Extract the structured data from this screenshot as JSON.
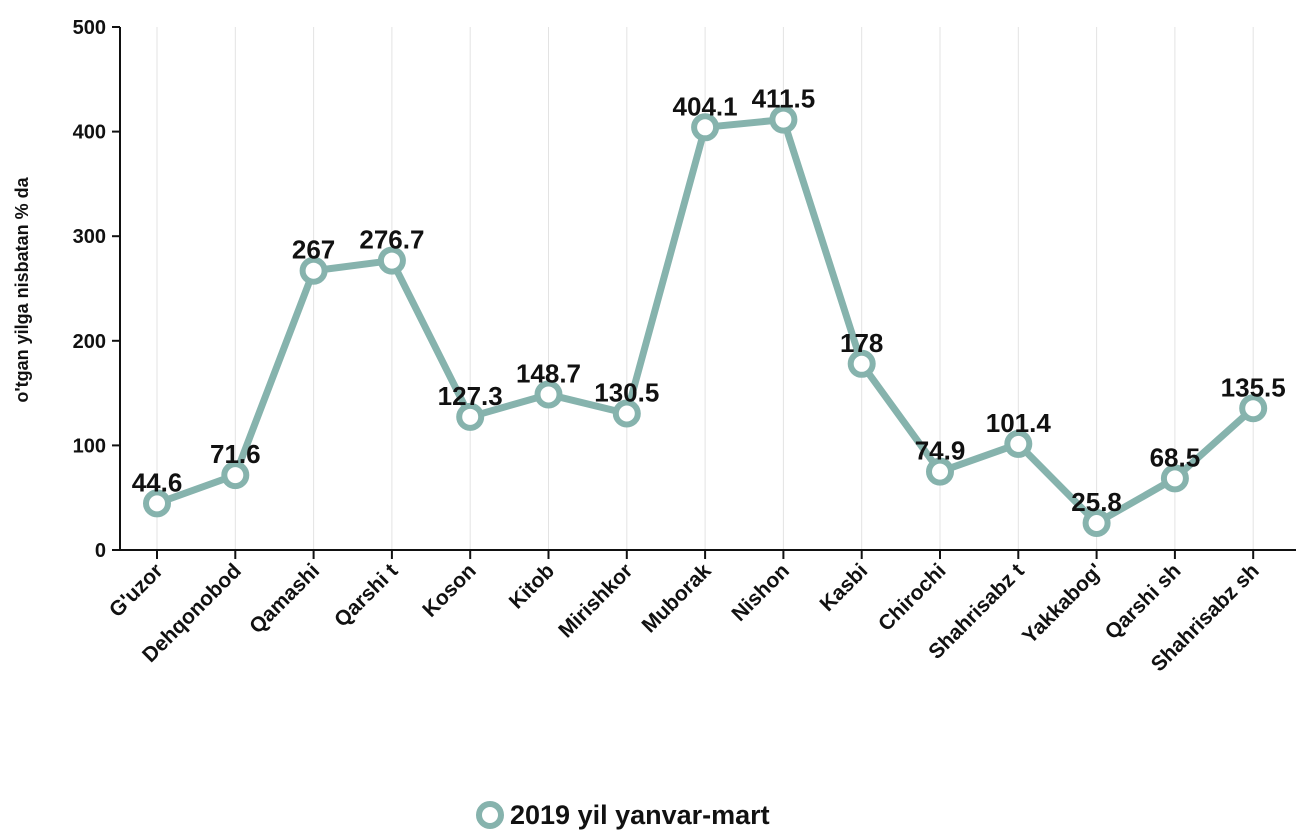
{
  "chart_data": {
    "type": "line",
    "title": "",
    "xlabel": "",
    "ylabel": "o'tgan yilga nisbatan % da",
    "ylim": [
      0,
      500
    ],
    "yticks": [
      0,
      100,
      200,
      300,
      400,
      500
    ],
    "categories": [
      "G'uzor",
      "Dehqonobod",
      "Qamashi",
      "Qarshi t",
      "Koson",
      "Kitob",
      "Mirishkor",
      "Muborak",
      "Nishon",
      "Kasbi",
      "Chirochi",
      "Shahrisabz t",
      "Yakkabog'",
      "Qarshi sh",
      "Shahrisabz sh"
    ],
    "series": [
      {
        "name": "2019 yil yanvar-mart",
        "values": [
          44.6,
          71.6,
          267,
          276.7,
          127.3,
          148.7,
          130.5,
          404.1,
          411.5,
          178,
          74.9,
          101.4,
          25.8,
          68.5,
          135.5
        ],
        "labels": [
          "44.6",
          "71.6",
          "267",
          "276.7",
          "127.3",
          "148.7",
          "130.5",
          "404.1",
          "411.5",
          "178",
          "74.9",
          "101.4",
          "25.8",
          "68.5",
          "135.5"
        ],
        "color": "#86b3ad"
      }
    ],
    "grid": "vertical",
    "legend_position": "bottom"
  }
}
